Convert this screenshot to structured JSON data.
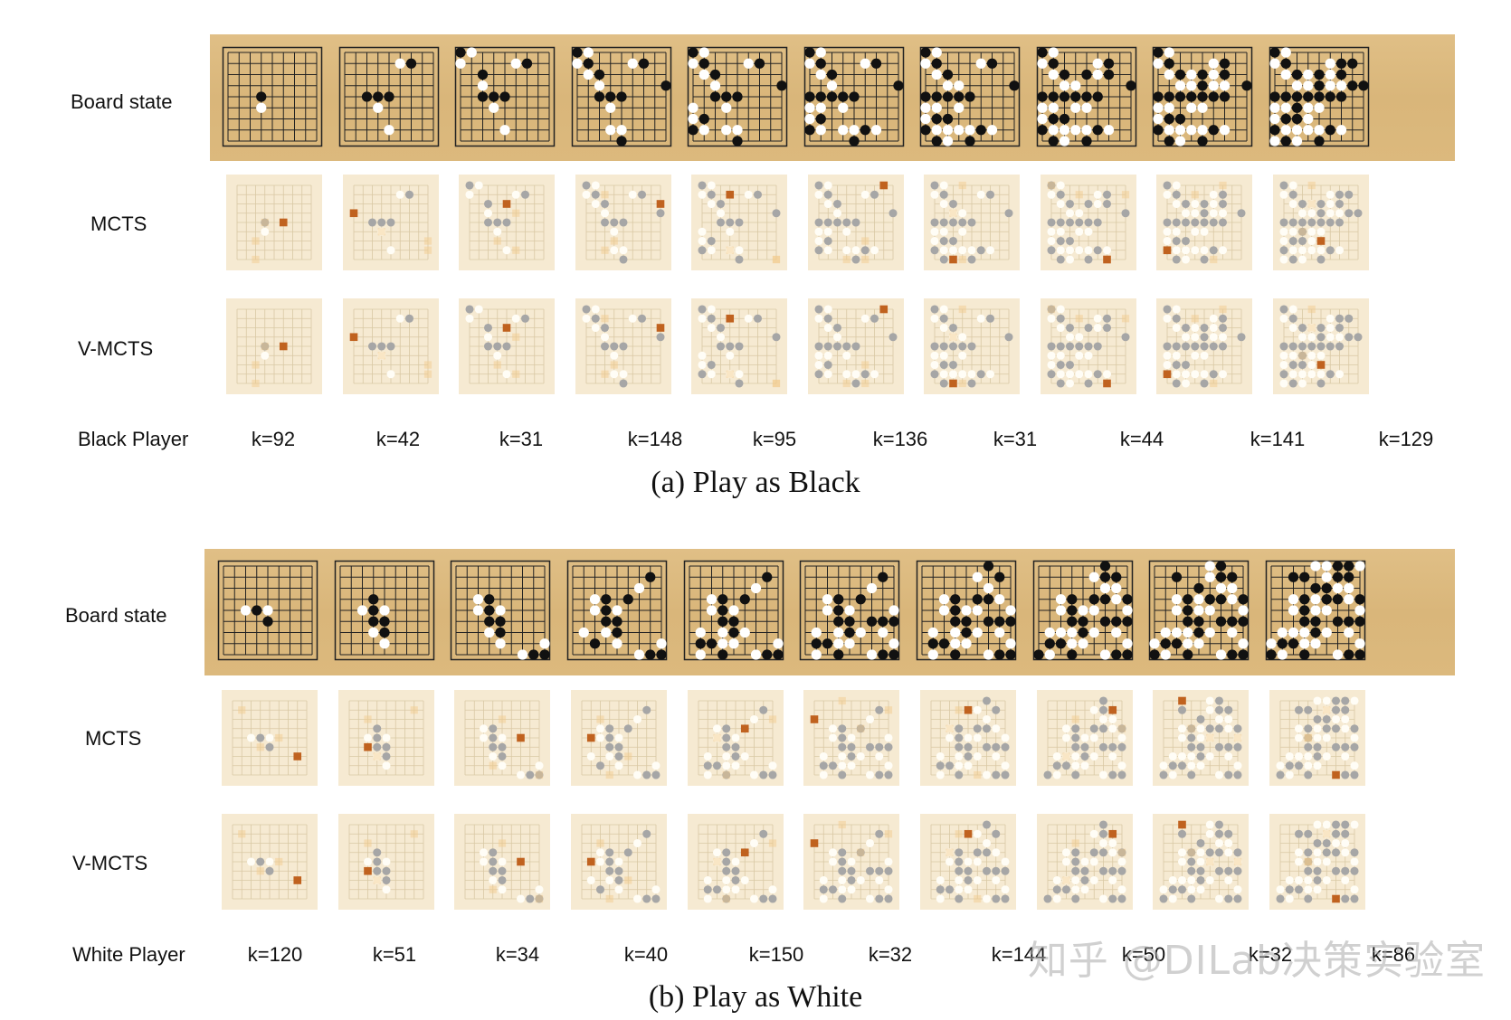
{
  "panels": [
    {
      "id": "black",
      "row_labels": {
        "board": "Board state",
        "mcts": "MCTS",
        "vmcts": "V-MCTS",
        "player": "Black Player"
      },
      "k_values": [
        "k=92",
        "k=42",
        "k=31",
        "k=148",
        "k=95",
        "k=136",
        "k=31",
        "k=44",
        "k=141",
        "k=129"
      ],
      "caption": "(a)  Play as Black"
    },
    {
      "id": "white",
      "row_labels": {
        "board": "Board state",
        "mcts": "MCTS",
        "vmcts": "V-MCTS",
        "player": "White Player"
      },
      "k_values": [
        "k=120",
        "k=51",
        "k=34",
        "k=40",
        "k=150",
        "k=32",
        "k=144",
        "k=50",
        "k=32",
        "k=86"
      ],
      "caption": "(b)  Play as White"
    }
  ],
  "watermark": "知乎 @DILab决策实验室",
  "colors": {
    "board": "#dcb97d",
    "heat_bg": "#f6ead2",
    "stone_black": "#111111",
    "stone_white": "#ffffff",
    "heat_stone": "#a6a6a6",
    "best_move": "#c0621f"
  }
}
